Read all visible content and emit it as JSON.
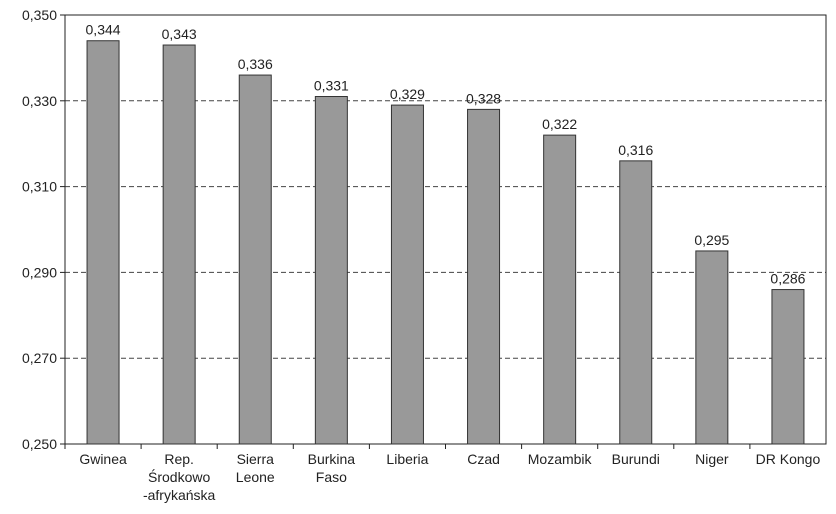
{
  "chart_data": {
    "type": "bar",
    "categories": [
      "Gwinea",
      "Rep.\nŚrodkowo\n-afrykańska",
      "Sierra\nLeone",
      "Burkina\nFaso",
      "Liberia",
      "Czad",
      "Mozambik",
      "Burundi",
      "Niger",
      "DR Kongo"
    ],
    "values": [
      0.344,
      0.343,
      0.336,
      0.331,
      0.329,
      0.328,
      0.322,
      0.316,
      0.295,
      0.286
    ],
    "value_labels": [
      "0,344",
      "0,343",
      "0,336",
      "0,331",
      "0,329",
      "0,328",
      "0,322",
      "0,316",
      "0,295",
      "0,286"
    ],
    "color": "#999999",
    "ylim": [
      0.25,
      0.35
    ],
    "yticks": [
      {
        "value": 0.25,
        "label": "0,250"
      },
      {
        "value": 0.27,
        "label": "0,270"
      },
      {
        "value": 0.29,
        "label": "0,290"
      },
      {
        "value": 0.31,
        "label": "0,310"
      },
      {
        "value": 0.33,
        "label": "0,330"
      },
      {
        "value": 0.35,
        "label": "0,350"
      }
    ],
    "grid": true
  }
}
